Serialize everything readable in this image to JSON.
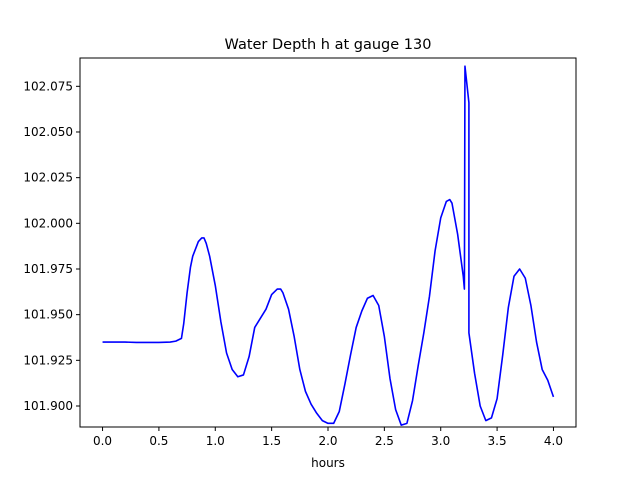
{
  "chart_data": {
    "type": "line",
    "title": "Water Depth h at gauge 130",
    "xlabel": "hours",
    "ylabel": "",
    "xlim": [
      -0.2,
      4.2
    ],
    "ylim": [
      101.8885,
      102.0905
    ],
    "xticks": [
      0.0,
      0.5,
      1.0,
      1.5,
      2.0,
      2.5,
      3.0,
      3.5,
      4.0
    ],
    "xtick_labels": [
      "0.0",
      "0.5",
      "1.0",
      "1.5",
      "2.0",
      "2.5",
      "3.0",
      "3.5",
      "4.0"
    ],
    "yticks": [
      101.9,
      101.925,
      101.95,
      101.975,
      102.0,
      102.025,
      102.05,
      102.075
    ],
    "ytick_labels": [
      "101.900",
      "101.925",
      "101.950",
      "101.975",
      "102.000",
      "102.025",
      "102.050",
      "102.075"
    ],
    "grid": false,
    "series": [
      {
        "color": "#0000ff",
        "x": [
          0.0,
          0.2,
          0.3,
          0.5,
          0.6,
          0.65,
          0.7,
          0.72,
          0.75,
          0.78,
          0.8,
          0.85,
          0.88,
          0.9,
          0.92,
          0.95,
          1.0,
          1.05,
          1.1,
          1.15,
          1.2,
          1.25,
          1.3,
          1.35,
          1.4,
          1.45,
          1.5,
          1.55,
          1.58,
          1.6,
          1.65,
          1.7,
          1.75,
          1.8,
          1.85,
          1.9,
          1.95,
          2.0,
          2.05,
          2.1,
          2.15,
          2.2,
          2.25,
          2.3,
          2.35,
          2.4,
          2.45,
          2.5,
          2.55,
          2.6,
          2.65,
          2.7,
          2.75,
          2.8,
          2.85,
          2.9,
          2.95,
          3.0,
          3.05,
          3.08,
          3.1,
          3.15,
          3.2,
          3.21,
          3.215,
          3.25,
          3.25,
          3.3,
          3.35,
          3.4,
          3.45,
          3.5,
          3.55,
          3.6,
          3.65,
          3.7,
          3.75,
          3.8,
          3.85,
          3.9,
          3.95,
          4.0
        ],
        "y": [
          101.935,
          101.935,
          101.9348,
          101.9348,
          101.935,
          101.9355,
          101.937,
          101.945,
          101.962,
          101.976,
          101.982,
          101.99,
          101.992,
          101.992,
          101.989,
          101.982,
          101.966,
          101.946,
          101.929,
          101.92,
          101.916,
          101.917,
          101.927,
          101.943,
          101.948,
          101.953,
          101.961,
          101.964,
          101.964,
          101.962,
          101.953,
          101.938,
          101.92,
          101.908,
          101.901,
          101.896,
          101.892,
          101.8905,
          101.8905,
          101.897,
          101.912,
          101.928,
          101.943,
          101.952,
          101.959,
          101.9605,
          101.955,
          101.938,
          101.915,
          101.898,
          101.8895,
          101.8905,
          101.903,
          101.922,
          101.94,
          101.96,
          101.985,
          102.003,
          102.012,
          102.013,
          102.011,
          101.994,
          101.971,
          101.964,
          102.086,
          102.066,
          101.94,
          101.918,
          101.9,
          101.892,
          101.8935,
          101.904,
          101.928,
          101.954,
          101.971,
          101.975,
          101.97,
          101.955,
          101.935,
          101.92,
          101.914,
          101.905
        ]
      }
    ]
  }
}
